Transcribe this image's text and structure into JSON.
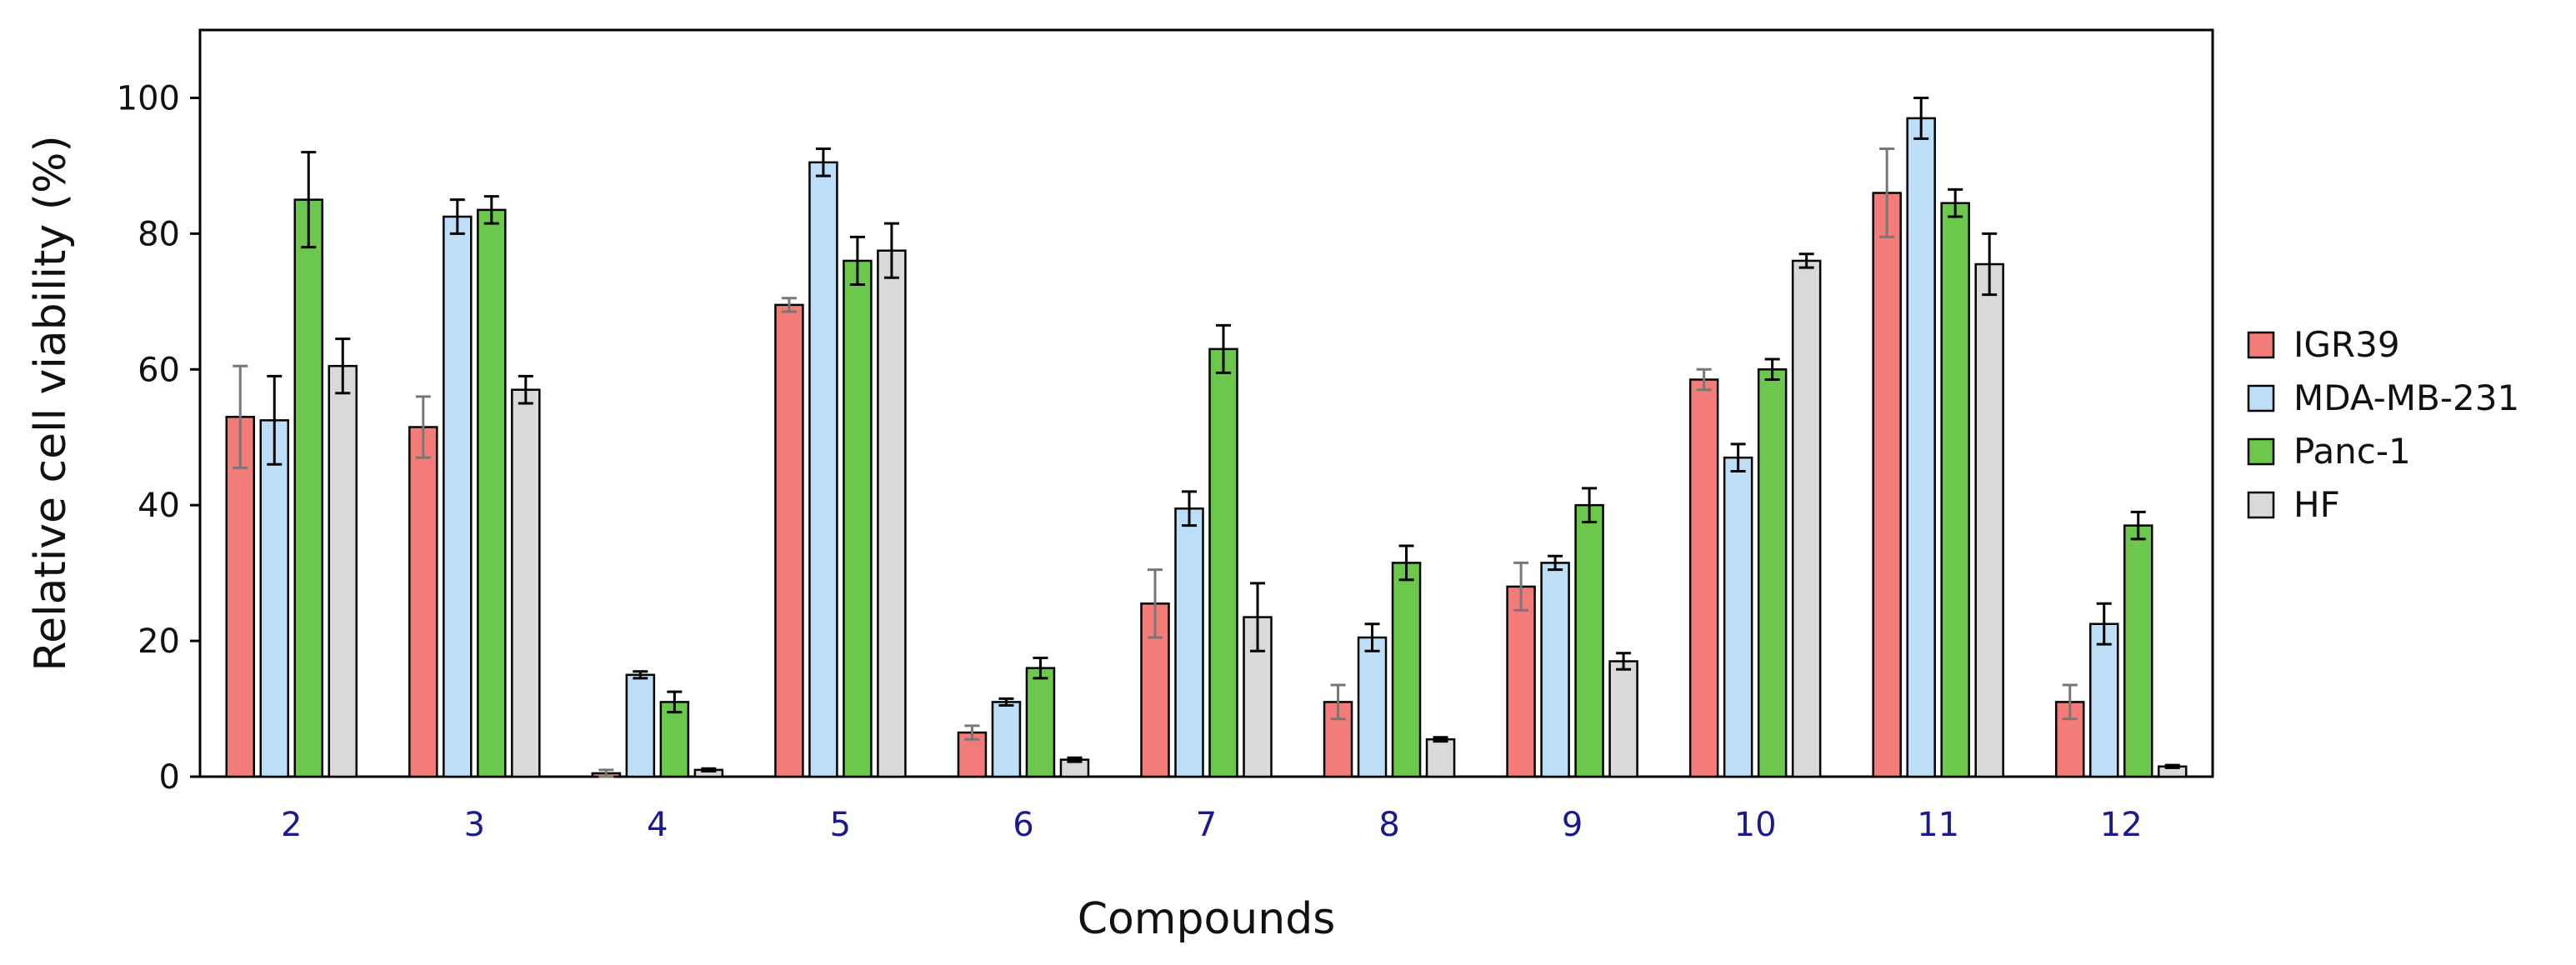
{
  "chart_data": {
    "type": "bar",
    "title": "",
    "xlabel": "Compounds",
    "ylabel": "Relative cell viability (%)",
    "ylim": [
      0,
      110
    ],
    "yticks": [
      0,
      20,
      40,
      60,
      80,
      100
    ],
    "grid": false,
    "legend_position": "right",
    "categories": [
      "2",
      "3",
      "4",
      "5",
      "6",
      "7",
      "8",
      "9",
      "10",
      "11",
      "12"
    ],
    "series": [
      {
        "name": "IGR39",
        "color": "#f47c78",
        "errorbar_color": "#777777",
        "values": [
          53,
          51.5,
          0.5,
          69.5,
          6.5,
          25.5,
          11,
          28,
          58.5,
          86,
          11
        ],
        "errors": [
          7.5,
          4.5,
          0.5,
          1.0,
          1.0,
          5.0,
          2.5,
          3.5,
          1.5,
          6.5,
          2.5
        ]
      },
      {
        "name": "MDA-MB-231",
        "color": "#bcdff7",
        "errorbar_color": "#000000",
        "values": [
          52.5,
          82.5,
          15,
          90.5,
          11,
          39.5,
          20.5,
          31.5,
          47,
          97,
          22.5
        ],
        "errors": [
          6.5,
          2.5,
          0.5,
          2.0,
          0.5,
          2.5,
          2.0,
          1.0,
          2.0,
          3.0,
          3.0
        ]
      },
      {
        "name": "Panc-1",
        "color": "#6cc84c",
        "errorbar_color": "#000000",
        "values": [
          85,
          83.5,
          11,
          76,
          16,
          63,
          31.5,
          40,
          60,
          84.5,
          37
        ],
        "errors": [
          7.0,
          2.0,
          1.5,
          3.5,
          1.5,
          3.5,
          2.5,
          2.5,
          1.5,
          2.0,
          2.0
        ]
      },
      {
        "name": "HF",
        "color": "#d9d9d9",
        "errorbar_color": "#000000",
        "values": [
          60.5,
          57,
          1,
          77.5,
          2.5,
          23.5,
          5.5,
          17,
          76,
          75.5,
          1.5
        ],
        "errors": [
          4.0,
          2.0,
          0.2,
          4.0,
          0.3,
          5.0,
          0.3,
          1.2,
          1.0,
          4.5,
          0.2
        ]
      }
    ]
  }
}
